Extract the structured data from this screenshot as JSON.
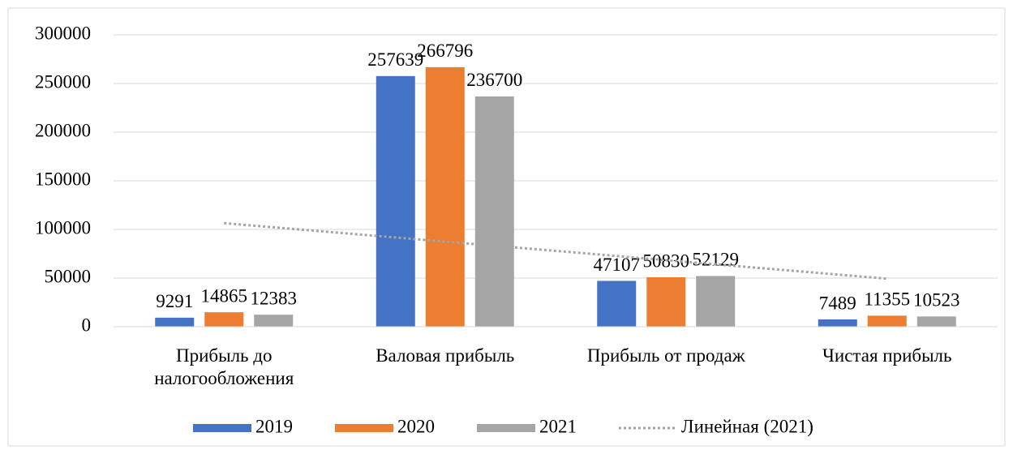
{
  "chart_data": {
    "type": "bar",
    "categories": [
      "Прибыль до налогообложения",
      "Валовая прибыль",
      "Прибыль от продаж",
      "Чистая прибыль"
    ],
    "series": [
      {
        "name": "2019",
        "color": "#4472c4",
        "values": [
          9291,
          257639,
          47107,
          7489
        ]
      },
      {
        "name": "2020",
        "color": "#ed7d31",
        "values": [
          14865,
          266796,
          50830,
          11355
        ]
      },
      {
        "name": "2021",
        "color": "#a5a5a5",
        "values": [
          12383,
          236700,
          52129,
          10523
        ]
      }
    ],
    "trendline": {
      "name": "Линейная (2021)",
      "series": "2021",
      "color": "#a5a5a5"
    },
    "ylim": [
      0,
      300000
    ],
    "yticks": [
      0,
      50000,
      100000,
      150000,
      200000,
      250000,
      300000
    ],
    "grid": true,
    "legend": "bottom"
  }
}
